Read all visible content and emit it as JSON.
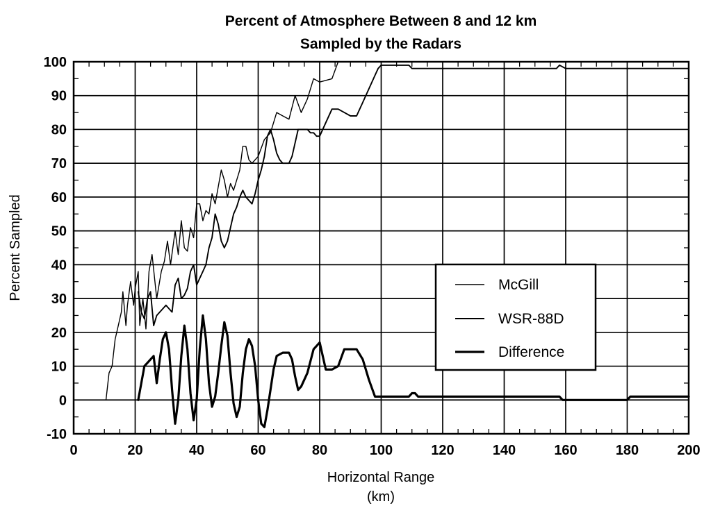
{
  "chart_data": {
    "type": "line",
    "title_line1": "Percent of Atmosphere Between 8 and 12 km",
    "title_line2": "Sampled by the Radars",
    "xlabel_line1": "Horizontal Range",
    "xlabel_line2": "(km)",
    "ylabel": "Percent Sampled",
    "xlim": [
      0,
      200
    ],
    "ylim": [
      -10,
      100
    ],
    "x_ticks": [
      0,
      20,
      40,
      60,
      80,
      100,
      120,
      140,
      160,
      180,
      200
    ],
    "y_ticks": [
      -10,
      0,
      10,
      20,
      30,
      40,
      50,
      60,
      70,
      80,
      90,
      100
    ],
    "grid": true,
    "legend_position": "center-right",
    "colors": {
      "line": "#000000",
      "background": "#ffffff"
    },
    "series": [
      {
        "name": "McGill",
        "x": [
          10.5,
          11.5,
          12.5,
          13.5,
          14.5,
          15.5,
          16,
          17,
          17.5,
          18.5,
          19.5,
          20,
          21,
          21.5,
          22.5,
          23.5,
          24.5,
          25.5,
          27,
          28.5,
          29.5,
          30.5,
          31.5,
          33,
          34,
          35,
          36,
          37,
          38,
          39,
          40,
          41,
          42,
          43,
          44,
          45,
          46,
          48,
          49,
          50,
          51,
          52,
          54,
          55,
          56,
          57,
          58,
          60,
          62,
          64,
          66,
          68,
          70,
          72,
          74,
          76,
          78,
          80,
          84,
          86,
          88,
          90,
          92,
          94,
          96,
          98,
          100,
          200
        ],
        "y": [
          0,
          8,
          10,
          18,
          22,
          26,
          32,
          22,
          28,
          35,
          28,
          33,
          38,
          22,
          30,
          21,
          38,
          43,
          30,
          38,
          41,
          47,
          40,
          50,
          43,
          53,
          45,
          44,
          51,
          48,
          58,
          58,
          53,
          56,
          55,
          61,
          58,
          68,
          65,
          60,
          64,
          62,
          68,
          75,
          75,
          71,
          70,
          72,
          77,
          79,
          85,
          84,
          83,
          90,
          85,
          89,
          95,
          94,
          95,
          100,
          100,
          100,
          100,
          100,
          100,
          100,
          100,
          100
        ]
      },
      {
        "name": "WSR-88D",
        "x": [
          21,
          22,
          23,
          24,
          25,
          26,
          27,
          28,
          29,
          30,
          31,
          32,
          33,
          34,
          35,
          36,
          37,
          38,
          39,
          40,
          41,
          42,
          43,
          44,
          45,
          46,
          47,
          48,
          49,
          50,
          51,
          52,
          53,
          54,
          55,
          56,
          57,
          58,
          59,
          60,
          61,
          62,
          63,
          64,
          65,
          66,
          67,
          68,
          69,
          70,
          71,
          72,
          73,
          74,
          75,
          76,
          77,
          78,
          79,
          80,
          82,
          84,
          86,
          88,
          90,
          92,
          94,
          96,
          98,
          99,
          100,
          109,
          110,
          111,
          112,
          113,
          114,
          157,
          158,
          160,
          180,
          200
        ],
        "y": [
          32,
          26,
          24,
          30,
          32,
          22,
          25,
          26,
          27,
          28,
          27,
          26,
          34,
          36,
          30,
          31,
          33,
          38,
          40,
          34,
          36,
          38,
          40,
          45,
          48,
          55,
          52,
          47,
          45,
          47,
          51,
          55,
          57,
          60,
          62,
          60,
          59,
          58,
          61,
          65,
          68,
          72,
          78,
          80,
          77,
          73,
          71,
          70,
          70,
          70,
          72,
          76,
          80,
          80,
          80,
          80,
          79,
          79,
          78,
          78,
          82,
          86,
          86,
          85,
          84,
          84,
          88,
          92,
          96,
          98,
          99,
          99,
          98,
          98,
          98,
          98,
          98,
          98,
          99,
          98,
          98,
          98
        ]
      },
      {
        "name": "Difference",
        "x": [
          21,
          23,
          24,
          25,
          26,
          27,
          28,
          29,
          30,
          31,
          32,
          33,
          34,
          35,
          36,
          37,
          38,
          39,
          40,
          41,
          42,
          43,
          44,
          45,
          46,
          47,
          48,
          49,
          50,
          51,
          52,
          53,
          54,
          55,
          56,
          57,
          58,
          59,
          60,
          61,
          62,
          63,
          64,
          65,
          66,
          68,
          70,
          71,
          72,
          73,
          74,
          76,
          78,
          80,
          82,
          84,
          86,
          88,
          90,
          92,
          94,
          96,
          98,
          100,
          109,
          110,
          111,
          112,
          113,
          158,
          159,
          180,
          181,
          200
        ],
        "y": [
          0,
          10,
          11,
          12,
          13,
          5,
          12,
          18,
          20,
          15,
          3,
          -7,
          0,
          13,
          22,
          15,
          2,
          -6,
          0,
          15,
          25,
          18,
          5,
          -2,
          1,
          8,
          16,
          23,
          19,
          8,
          -1,
          -5,
          -2,
          8,
          15,
          18,
          16,
          10,
          0,
          -7,
          -8,
          -3,
          3,
          9,
          13,
          14,
          14,
          12,
          7,
          3,
          4,
          8,
          15,
          17,
          9,
          9,
          10,
          15,
          15,
          15,
          12,
          6,
          1,
          1,
          1,
          2,
          2,
          1,
          1,
          1,
          0,
          0,
          1,
          1
        ]
      }
    ]
  },
  "legend": {
    "items": [
      {
        "label": "McGill",
        "stroke_width": 1.4
      },
      {
        "label": "WSR-88D",
        "stroke_width": 1.9
      },
      {
        "label": "Difference",
        "stroke_width": 3.2
      }
    ]
  }
}
